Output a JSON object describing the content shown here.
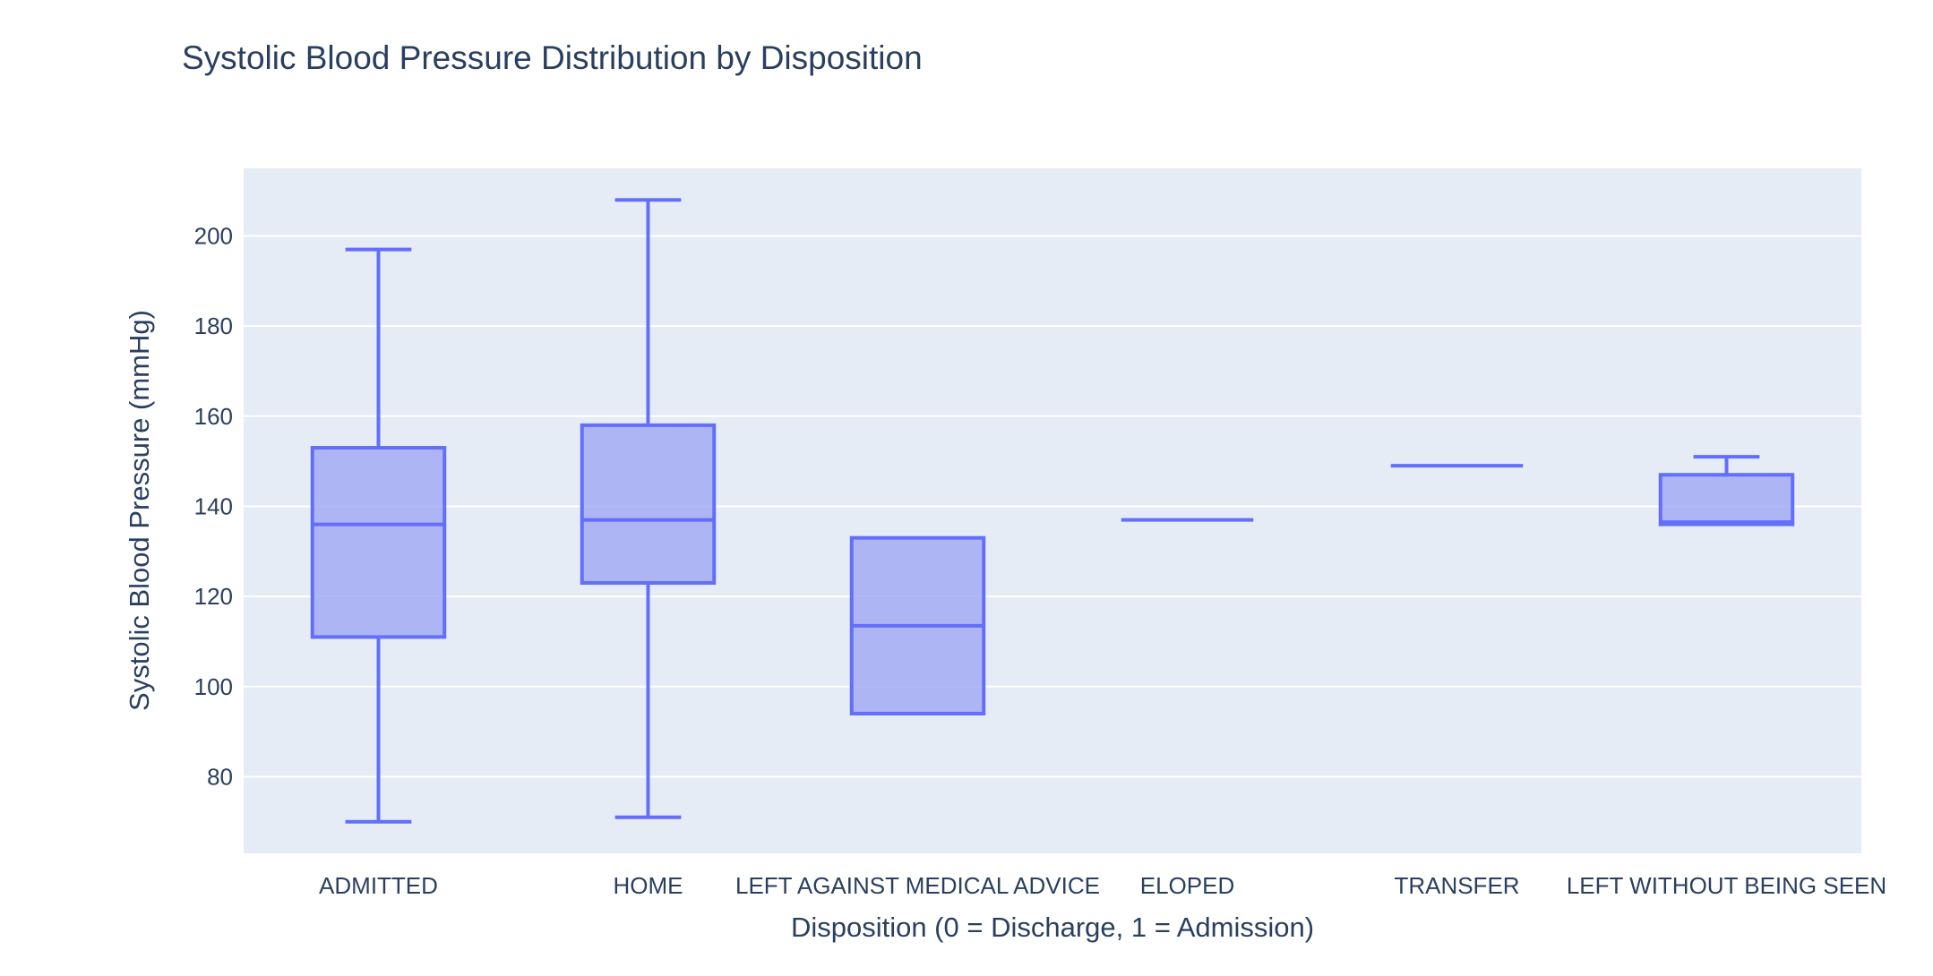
{
  "chart_data": {
    "type": "box",
    "title": "Systolic Blood Pressure Distribution by Disposition",
    "xlabel": "Disposition (0 = Discharge, 1 = Admission)",
    "ylabel": "Systolic Blood Pressure (mmHg)",
    "ylim": [
      63,
      215
    ],
    "yticks": [
      80,
      100,
      120,
      140,
      160,
      180,
      200
    ],
    "grid": true,
    "legend": "none",
    "colors": {
      "stroke": "#636efa",
      "fill": "#a5acf3",
      "plot_bg": "#e5ecf6",
      "grid": "#ffffff",
      "text": "#2a3f5f"
    },
    "categories": [
      "ADMITTED",
      "HOME",
      "LEFT AGAINST MEDICAL ADVICE",
      "ELOPED",
      "TRANSFER",
      "LEFT WITHOUT BEING SEEN"
    ],
    "boxes": [
      {
        "category": "ADMITTED",
        "min": 70,
        "q1": 111,
        "median": 136,
        "q3": 153,
        "max": 197
      },
      {
        "category": "HOME",
        "min": 71,
        "q1": 123,
        "median": 137,
        "q3": 158,
        "max": 208
      },
      {
        "category": "LEFT AGAINST MEDICAL ADVICE",
        "min": 94,
        "q1": 94,
        "median": 113.5,
        "q3": 133,
        "max": 133
      },
      {
        "category": "ELOPED",
        "min": 137,
        "q1": 137,
        "median": 137,
        "q3": 137,
        "max": 137
      },
      {
        "category": "TRANSFER",
        "min": 149,
        "q1": 149,
        "median": 149,
        "q3": 149,
        "max": 149
      },
      {
        "category": "LEFT WITHOUT BEING SEEN",
        "min": 136,
        "q1": 136,
        "median": 136.5,
        "q3": 147,
        "max": 151
      }
    ]
  }
}
